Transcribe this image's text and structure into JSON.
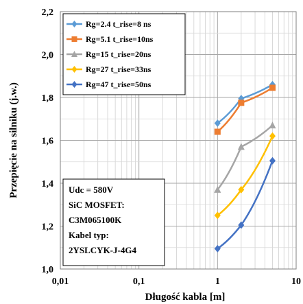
{
  "chart_data": {
    "type": "line",
    "x_scale": "log",
    "xlim": [
      0.01,
      10
    ],
    "ylim": [
      1.0,
      2.2
    ],
    "x_ticks": [
      0.01,
      0.1,
      1,
      10
    ],
    "x_tick_labels": [
      "0,01",
      "0,1",
      "1",
      "10"
    ],
    "y_ticks": [
      1.0,
      1.2,
      1.4,
      1.6,
      1.8,
      2.0,
      2.2
    ],
    "y_tick_labels": [
      "1,0",
      "1,2",
      "1,4",
      "1,6",
      "1,8",
      "2,0",
      "2,2"
    ],
    "xlabel": "Długość kabla [m]",
    "ylabel": "Przepięcie na silniku (j.w.)",
    "grid": true,
    "legend_position": "top-left",
    "series": [
      {
        "name": "Rg=2.4  t_rise=8 ns",
        "color": "#5B9BD5",
        "marker": "diamond",
        "x": [
          1,
          2,
          5
        ],
        "y": [
          1.68,
          1.795,
          1.86
        ]
      },
      {
        "name": "Rg=5.1  t_rise=10ns",
        "color": "#ED7D31",
        "marker": "square",
        "x": [
          1,
          2,
          5
        ],
        "y": [
          1.64,
          1.775,
          1.845
        ]
      },
      {
        "name": "Rg=15  t_rise=20ns",
        "color": "#A5A5A5",
        "marker": "triangle",
        "x": [
          1,
          2,
          5
        ],
        "y": [
          1.37,
          1.57,
          1.67
        ]
      },
      {
        "name": "Rg=27  t_rise=33ns",
        "color": "#FFC000",
        "marker": "diamond",
        "x": [
          1,
          2,
          5
        ],
        "y": [
          1.25,
          1.37,
          1.62
        ]
      },
      {
        "name": "Rg=47  t_rise=50ns",
        "color": "#4472C4",
        "marker": "diamond",
        "x": [
          1,
          2,
          5
        ],
        "y": [
          1.095,
          1.205,
          1.505
        ]
      }
    ],
    "annotation": [
      "Udc = 580V",
      "SiC MOSFET:",
      "C3M065100K",
      "Kabel typ:",
      "2YSLCYK-J-4G4"
    ]
  }
}
